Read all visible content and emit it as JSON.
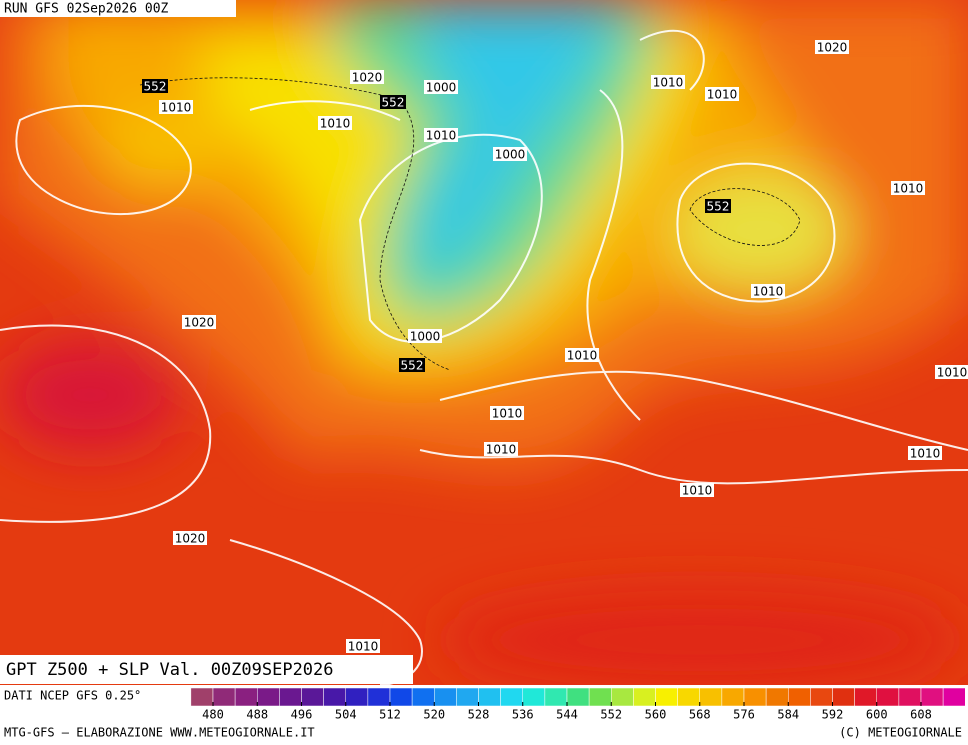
{
  "header": {
    "run": "RUN GFS 02Sep2026 00Z"
  },
  "title": "GPT Z500 + SLP Val. 00Z09SEP2026",
  "isobar_labels": [
    "1020",
    "1010",
    "1020",
    "1000",
    "1010",
    "1010",
    "1010",
    "1010",
    "1000",
    "1010",
    "1010",
    "1020",
    "1000",
    "1010",
    "1010",
    "1010",
    "1010",
    "1010",
    "1010",
    "1020",
    "1010"
  ],
  "z500_labels": [
    "552",
    "552",
    "552",
    "552"
  ],
  "legend": {
    "source": "DATI NCEP GFS 0.25°",
    "ticks": [
      480,
      488,
      496,
      504,
      512,
      520,
      528,
      536,
      544,
      552,
      560,
      568,
      576,
      584,
      592,
      600,
      608
    ],
    "colors": [
      "#a0406a",
      "#902a78",
      "#8a2080",
      "#7a1a88",
      "#6a1890",
      "#5a1898",
      "#4818a8",
      "#3020c0",
      "#2030d8",
      "#1048e8",
      "#1070f0",
      "#1890f0",
      "#20a8f0",
      "#20c0f0",
      "#20d8f0",
      "#20e8d8",
      "#30e8b0",
      "#40e080",
      "#70e050",
      "#a8e840",
      "#d8f020",
      "#f8f000",
      "#f8d800",
      "#f8c000",
      "#f8a800",
      "#f89000",
      "#f07800",
      "#f06000",
      "#e84810",
      "#e03010",
      "#e01828",
      "#e01040",
      "#e01060",
      "#e01080",
      "#e000a0"
    ]
  },
  "footer": {
    "left": "MTG-GFS – ELABORAZIONE WWW.METEOGIORNALE.IT",
    "right": "(C) METEOGIORNALE"
  }
}
